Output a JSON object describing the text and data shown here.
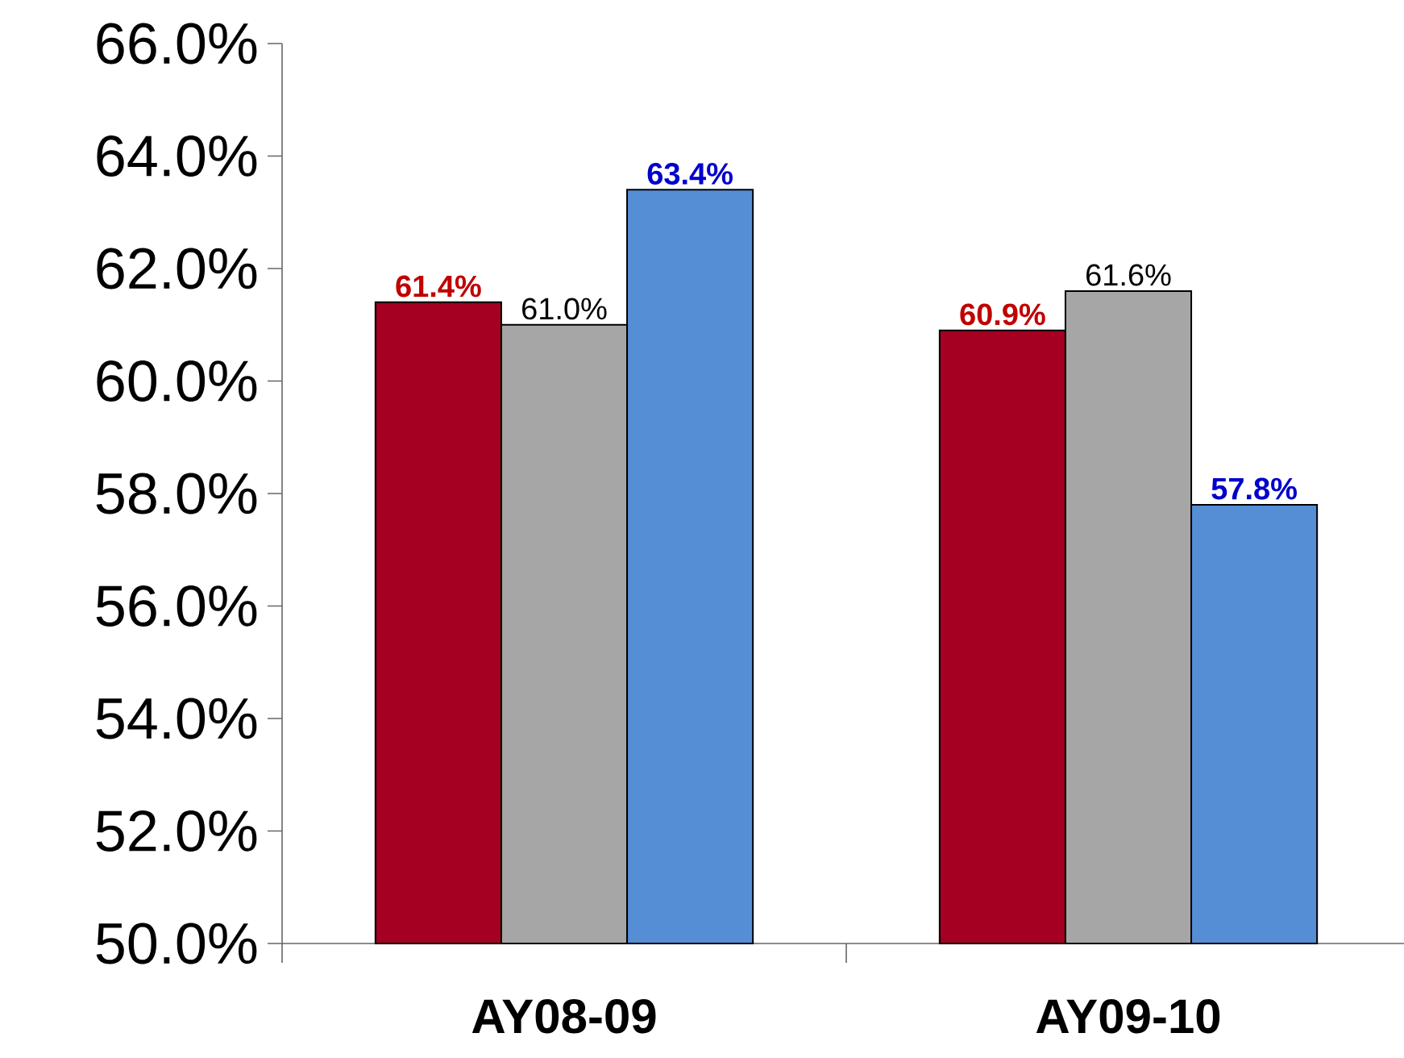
{
  "chart_data": {
    "type": "bar",
    "categories": [
      "AY08-09",
      "AY09-10"
    ],
    "series": [
      {
        "color": "#a50021",
        "values": [
          61.4,
          60.9
        ],
        "value_labels": [
          "61.4%",
          "60.9%"
        ]
      },
      {
        "color": "#a6a6a6",
        "values": [
          61.0,
          61.6
        ],
        "value_labels": [
          "61.0%",
          "61.6%"
        ]
      },
      {
        "color": "#558ed5",
        "values": [
          63.4,
          57.8
        ],
        "value_labels": [
          "63.4%",
          "57.8%"
        ]
      }
    ],
    "ylim": [
      50,
      66
    ],
    "yticks": [
      {
        "value": 50,
        "label": "50.0%"
      },
      {
        "value": 52,
        "label": "52.0%"
      },
      {
        "value": 54,
        "label": "54.0%"
      },
      {
        "value": 56,
        "label": "56.0%"
      },
      {
        "value": 58,
        "label": "58.0%"
      },
      {
        "value": 60,
        "label": "60.0%"
      },
      {
        "value": 62,
        "label": "62.0%"
      },
      {
        "value": 64,
        "label": "64.0%"
      },
      {
        "value": 66,
        "label": "66.0%"
      }
    ],
    "grid": false
  }
}
